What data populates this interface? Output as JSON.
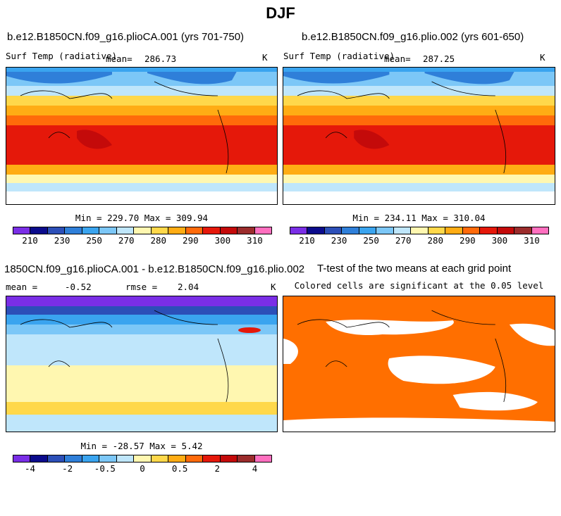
{
  "season": "DJF",
  "colorbar_colors": [
    "#7a2ee6",
    "#0b0b8c",
    "#2c4fb8",
    "#2f7fd9",
    "#3aa4ef",
    "#7cc7f7",
    "#bfe6fb",
    "#fff7b0",
    "#ffd84a",
    "#ffac14",
    "#ff6a0a",
    "#e5180a",
    "#c40a0a",
    "#9b2c2c",
    "#ff6fbf"
  ],
  "panels": {
    "p1": {
      "case_title": "b.e12.B1850CN.f09_g16.plioCA.001 (yrs 701-750)",
      "variable": "Surf Temp (radiative)",
      "mean_label": "mean=",
      "mean_value": "286.73",
      "units": "K",
      "minmax": "Min = 229.70 Max = 309.94",
      "colorbar_ticks": [
        "210",
        "230",
        "250",
        "270",
        "280",
        "290",
        "300",
        "310"
      ]
    },
    "p2": {
      "case_title": "b.e12.B1850CN.f09_g16.plio.002 (yrs 601-650)",
      "variable": "Surf Temp (radiative)",
      "mean_label": "mean=",
      "mean_value": "287.25",
      "units": "K",
      "minmax": "Min = 234.11 Max = 310.04",
      "colorbar_ticks": [
        "210",
        "230",
        "250",
        "270",
        "280",
        "290",
        "300",
        "310"
      ]
    },
    "p3": {
      "case_title": "1850CN.f09_g16.plioCA.001 - b.e12.B1850CN.f09_g16.plio.002",
      "mean_label": "mean =",
      "mean_value": "-0.52",
      "rmse_label": "rmse =",
      "rmse_value": "2.04",
      "units": "K",
      "minmax": "Min = -28.57 Max =   5.42",
      "colorbar_ticks": [
        "-4",
        "-2",
        "-0.5",
        "0",
        "0.5",
        "2",
        "4"
      ]
    },
    "p4": {
      "title": "T-test of the two means at each grid point",
      "subtitle": "Colored cells are significant at the 0.05 level",
      "color": "#ff6f00"
    }
  },
  "chart_data": [
    {
      "type": "heatmap",
      "title": "b.e12.B1850CN.f09_g16.plioCA.001 (yrs 701-750)",
      "variable": "Surf Temp (radiative)",
      "units": "K",
      "mean": 286.73,
      "min": 229.7,
      "max": 309.94,
      "levels": [
        210,
        220,
        230,
        240,
        250,
        260,
        270,
        275,
        280,
        285,
        290,
        295,
        300,
        305,
        310
      ]
    },
    {
      "type": "heatmap",
      "title": "b.e12.B1850CN.f09_g16.plio.002 (yrs 601-650)",
      "variable": "Surf Temp (radiative)",
      "units": "K",
      "mean": 287.25,
      "min": 234.11,
      "max": 310.04,
      "levels": [
        210,
        220,
        230,
        240,
        250,
        260,
        270,
        275,
        280,
        285,
        290,
        295,
        300,
        305,
        310
      ]
    },
    {
      "type": "heatmap",
      "title": "plioCA.001 - plio.002",
      "units": "K",
      "mean": -0.52,
      "rmse": 2.04,
      "min": -28.57,
      "max": 5.42,
      "levels": [
        -5,
        -4,
        -3,
        -2,
        -1,
        -0.5,
        0,
        0.25,
        0.5,
        1,
        2,
        3,
        4,
        5
      ]
    },
    {
      "type": "heatmap",
      "title": "T-test of the two means at each grid point",
      "subtitle": "Colored cells are significant at the 0.05 level"
    }
  ]
}
